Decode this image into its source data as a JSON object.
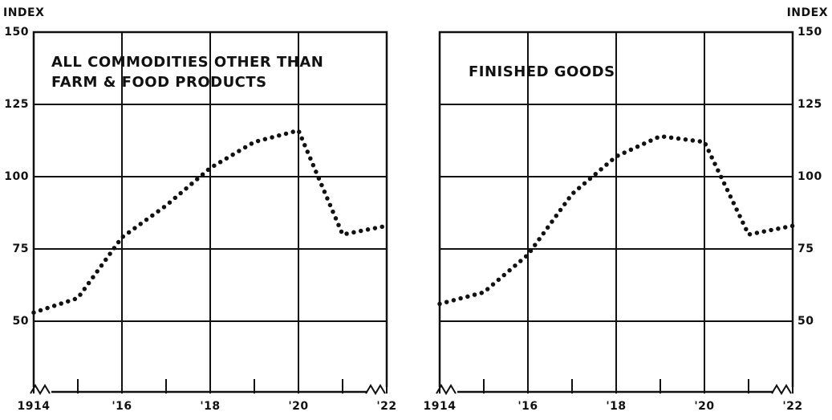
{
  "chart_data": [
    {
      "type": "line",
      "title": [
        "ALL COMMODITIES OTHER THAN",
        "FARM & FOOD PRODUCTS"
      ],
      "ylabel": "INDEX",
      "yaxis_side": "left",
      "x": [
        1914,
        1915,
        1916,
        1917,
        1918,
        1919,
        1920,
        1921,
        1922
      ],
      "series": [
        {
          "color": "#111111",
          "values": [
            53,
            58,
            79,
            90,
            103,
            112,
            116,
            80,
            83
          ]
        }
      ],
      "xlim": [
        1914,
        1922
      ],
      "ylim": [
        25,
        150
      ],
      "xticks": [
        1914,
        {
          "value": 1916,
          "label": "'16"
        },
        {
          "value": 1918,
          "label": "'18"
        },
        {
          "value": 1920,
          "label": "'20"
        },
        {
          "value": 1922,
          "label": "'22"
        }
      ],
      "xminorticks": [
        1915,
        1917,
        1919,
        1921
      ],
      "yticks": [
        50,
        75,
        100,
        125,
        150
      ],
      "grid": true
    },
    {
      "type": "line",
      "title": [
        "FINISHED GOODS"
      ],
      "ylabel": "INDEX",
      "yaxis_side": "right",
      "x": [
        1914,
        1915,
        1916,
        1917,
        1918,
        1919,
        1920,
        1921,
        1922
      ],
      "series": [
        {
          "color": "#111111",
          "values": [
            56,
            60,
            73,
            94,
            107,
            114,
            112,
            80,
            83
          ]
        }
      ],
      "xlim": [
        1914,
        1922
      ],
      "ylim": [
        25,
        150
      ],
      "xticks": [
        1914,
        {
          "value": 1916,
          "label": "'16"
        },
        {
          "value": 1918,
          "label": "'18"
        },
        {
          "value": 1920,
          "label": "'20"
        },
        {
          "value": 1922,
          "label": "'22"
        }
      ],
      "xminorticks": [
        1915,
        1917,
        1919,
        1921
      ],
      "yticks": [
        50,
        75,
        100,
        125,
        150
      ],
      "grid": true
    }
  ]
}
